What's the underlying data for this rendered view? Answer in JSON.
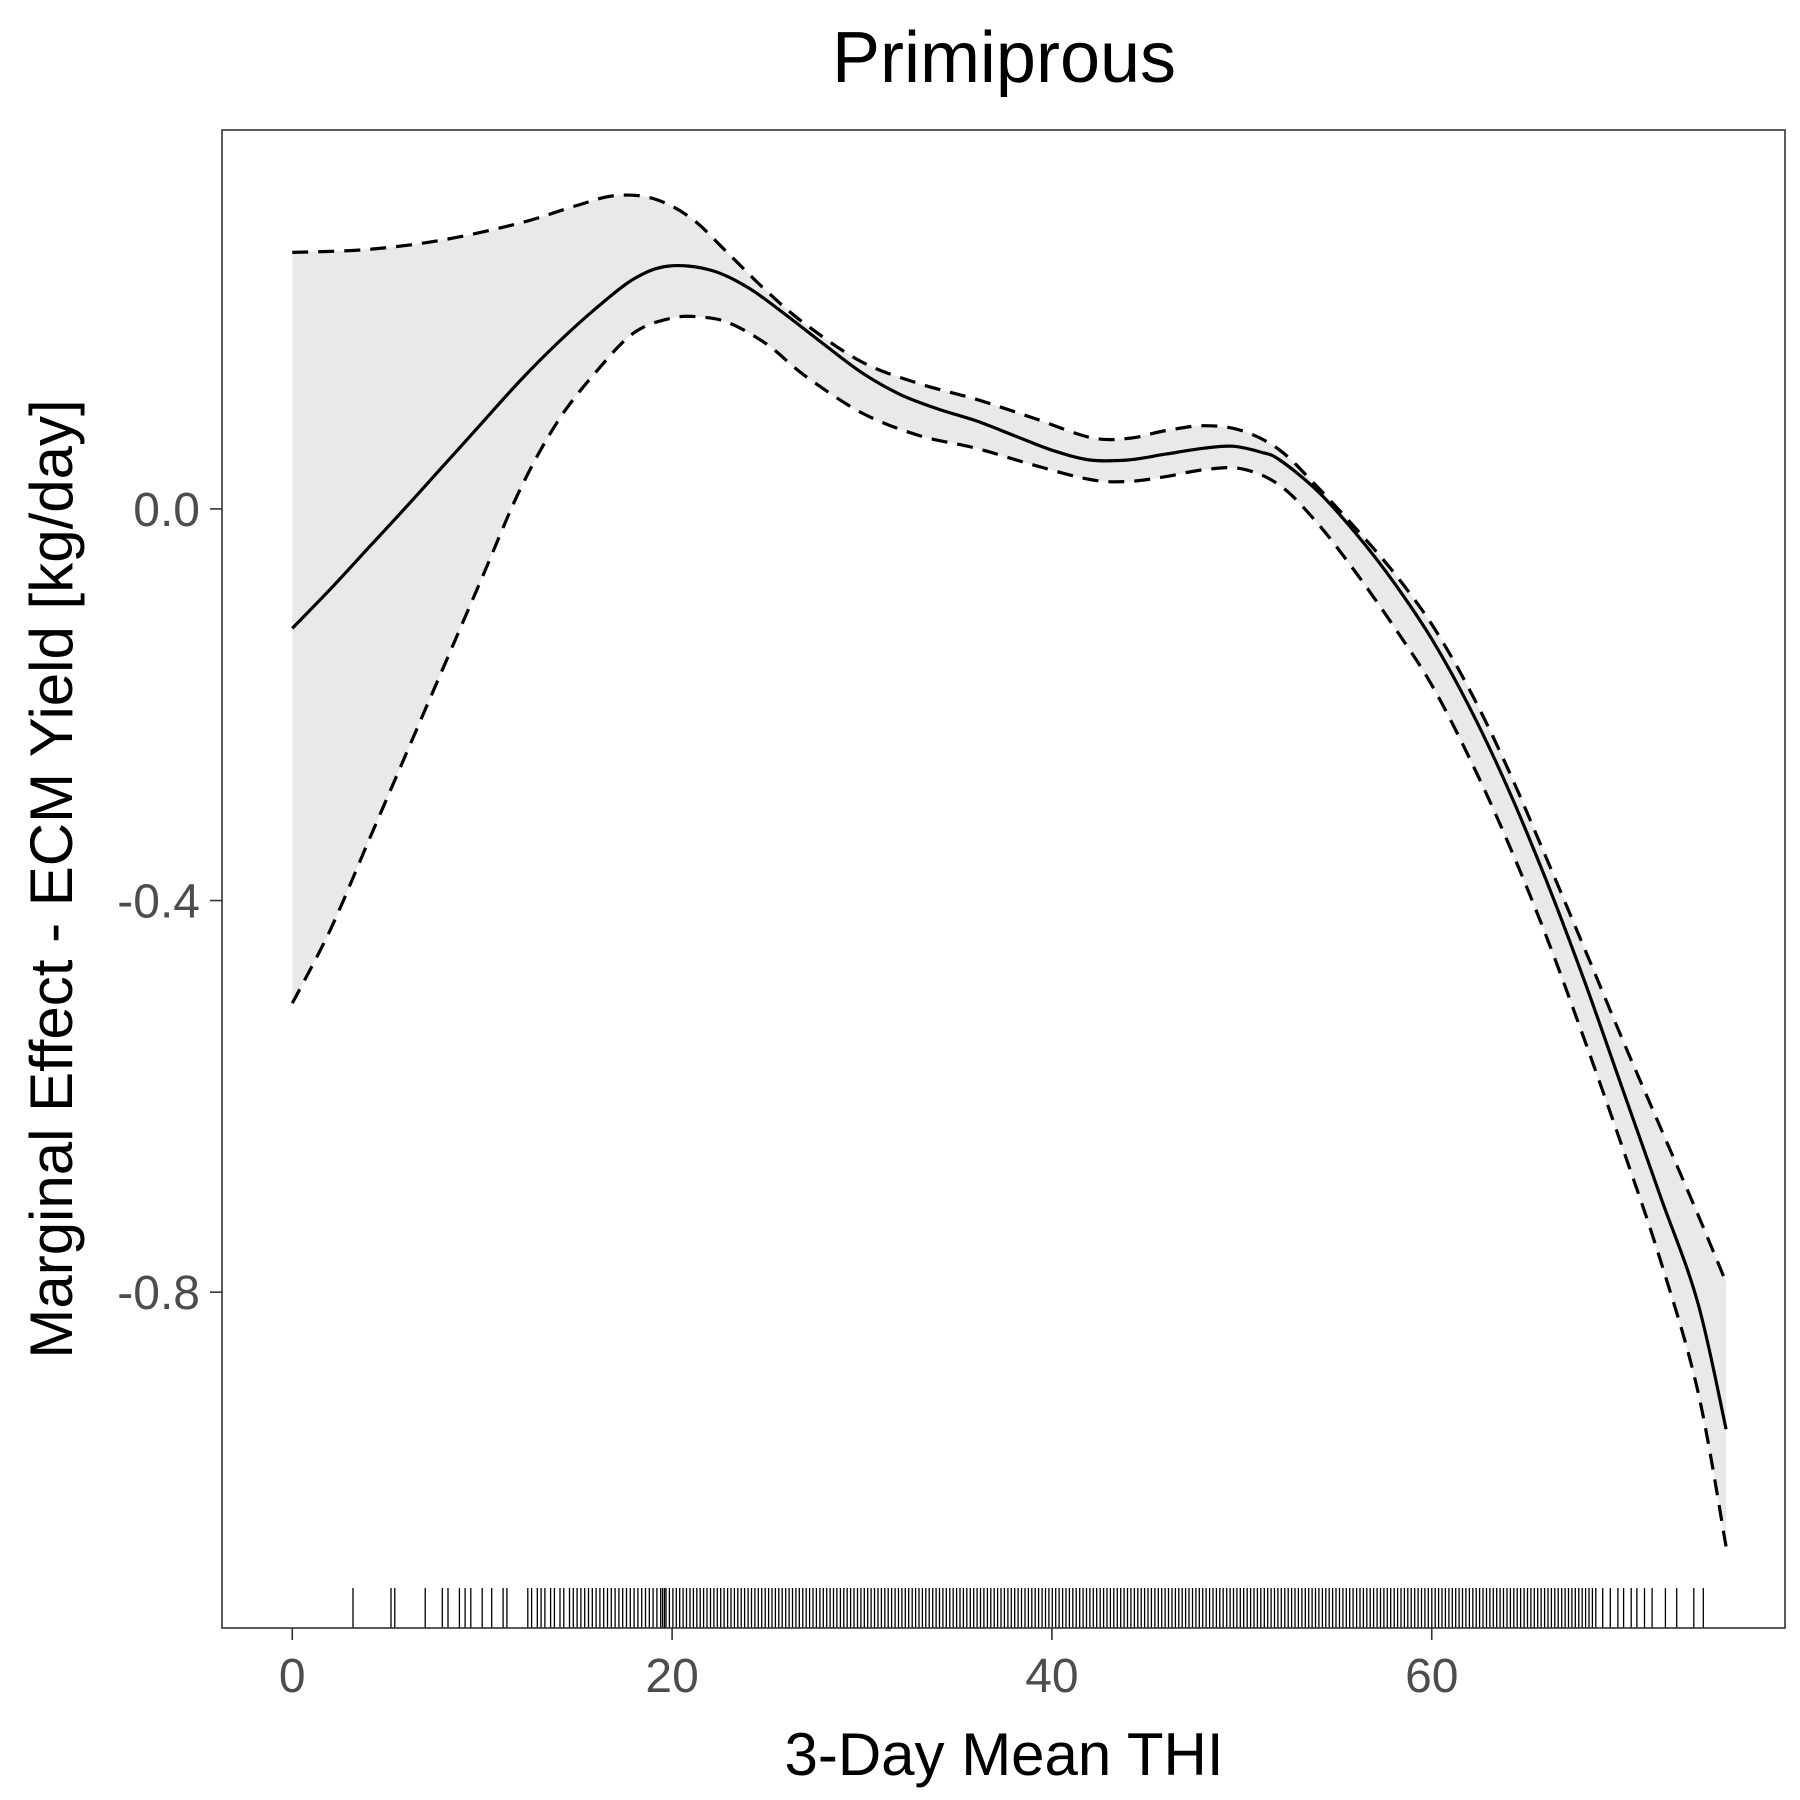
{
  "chart_data": {
    "type": "line",
    "title": "Primiprous",
    "xlabel": "3-Day Mean THI",
    "ylabel": "Marginal Effect - ECM Yield [kg/day]",
    "xlim": [
      -3.7,
      78.6
    ],
    "ylim": [
      -1.143,
      0.387
    ],
    "x_ticks": [
      0,
      20,
      40,
      60
    ],
    "x_tick_labels": [
      "0",
      "20",
      "40",
      "60"
    ],
    "y_ticks": [
      0.0,
      -0.4,
      -0.8
    ],
    "y_tick_labels": [
      "0.0",
      "-0.4",
      "-0.8"
    ],
    "grid": false,
    "legend": "none",
    "series": [
      {
        "role": "fit",
        "line": "solid",
        "x": [
          0,
          2,
          4,
          6,
          8,
          10,
          12,
          14,
          16,
          18,
          19.8,
          22,
          24,
          26,
          28,
          30,
          32,
          34,
          36,
          38,
          40,
          42,
          44,
          46,
          48,
          49.5,
          51,
          52,
          54,
          56,
          58,
          60,
          62,
          64,
          66,
          68,
          70,
          72,
          74,
          75.5
        ],
        "y": [
          -0.122,
          -0.082,
          -0.04,
          0.002,
          0.045,
          0.088,
          0.131,
          0.17,
          0.205,
          0.235,
          0.248,
          0.244,
          0.226,
          0.198,
          0.168,
          0.139,
          0.117,
          0.102,
          0.09,
          0.075,
          0.06,
          0.05,
          0.05,
          0.056,
          0.062,
          0.064,
          0.058,
          0.05,
          0.018,
          -0.025,
          -0.075,
          -0.133,
          -0.203,
          -0.285,
          -0.378,
          -0.48,
          -0.59,
          -0.7,
          -0.81,
          -0.94
        ]
      },
      {
        "role": "upper-ci",
        "line": "dashed",
        "x": [
          0,
          4,
          8,
          12,
          15,
          17,
          19,
          21,
          23,
          25,
          27,
          30,
          33,
          36,
          39,
          42,
          44,
          46,
          48,
          50,
          52,
          54,
          56,
          58,
          60,
          62,
          64,
          66,
          68,
          70,
          72,
          74,
          75.5
        ],
        "y": [
          0.262,
          0.265,
          0.275,
          0.292,
          0.31,
          0.32,
          0.317,
          0.297,
          0.26,
          0.222,
          0.189,
          0.15,
          0.128,
          0.112,
          0.093,
          0.073,
          0.072,
          0.08,
          0.085,
          0.08,
          0.06,
          0.022,
          -0.02,
          -0.065,
          -0.118,
          -0.185,
          -0.265,
          -0.355,
          -0.447,
          -0.54,
          -0.63,
          -0.72,
          -0.79
        ]
      },
      {
        "role": "lower-ci",
        "line": "dashed",
        "x": [
          0,
          2,
          4,
          6,
          8,
          10,
          12,
          14,
          16,
          18,
          20,
          21.5,
          23,
          25,
          27,
          30,
          33,
          36,
          39,
          42,
          44,
          46,
          48,
          50,
          52,
          54,
          56,
          58,
          60,
          62,
          64,
          66,
          68,
          70,
          72,
          74,
          75.5
        ],
        "y": [
          -0.505,
          -0.43,
          -0.34,
          -0.25,
          -0.16,
          -0.07,
          0.02,
          0.09,
          0.14,
          0.18,
          0.195,
          0.196,
          0.19,
          0.168,
          0.136,
          0.098,
          0.075,
          0.062,
          0.045,
          0.03,
          0.028,
          0.033,
          0.04,
          0.041,
          0.024,
          -0.015,
          -0.065,
          -0.12,
          -0.18,
          -0.255,
          -0.34,
          -0.435,
          -0.54,
          -0.65,
          -0.765,
          -0.9,
          -1.06
        ]
      }
    ],
    "rug": {
      "sparse_x": [
        3.2,
        5.2,
        5.4,
        7.0,
        7.9,
        8.2,
        8.8,
        9.1,
        9.4,
        10.0,
        10.5,
        11.1,
        11.3,
        12.4,
        12.6,
        12.9,
        13.1,
        13.3,
        13.6,
        13.8,
        14.1,
        14.3,
        14.6,
        14.8,
        15.0,
        15.2,
        15.4,
        15.6,
        15.8,
        16.0,
        16.2,
        16.4,
        16.6,
        16.8,
        17.0,
        17.2,
        17.4,
        17.6,
        17.8,
        18.0,
        18.2,
        18.4,
        18.6,
        18.8,
        19.0,
        19.2,
        19.4,
        19.6,
        69.0,
        69.4,
        69.8,
        70.1,
        70.5,
        70.8,
        71.2,
        71.6,
        72.3,
        72.9,
        73.8,
        74.3
      ],
      "dense_from": 19.5,
      "dense_to": 68.8,
      "dense_step": 0.18
    }
  }
}
